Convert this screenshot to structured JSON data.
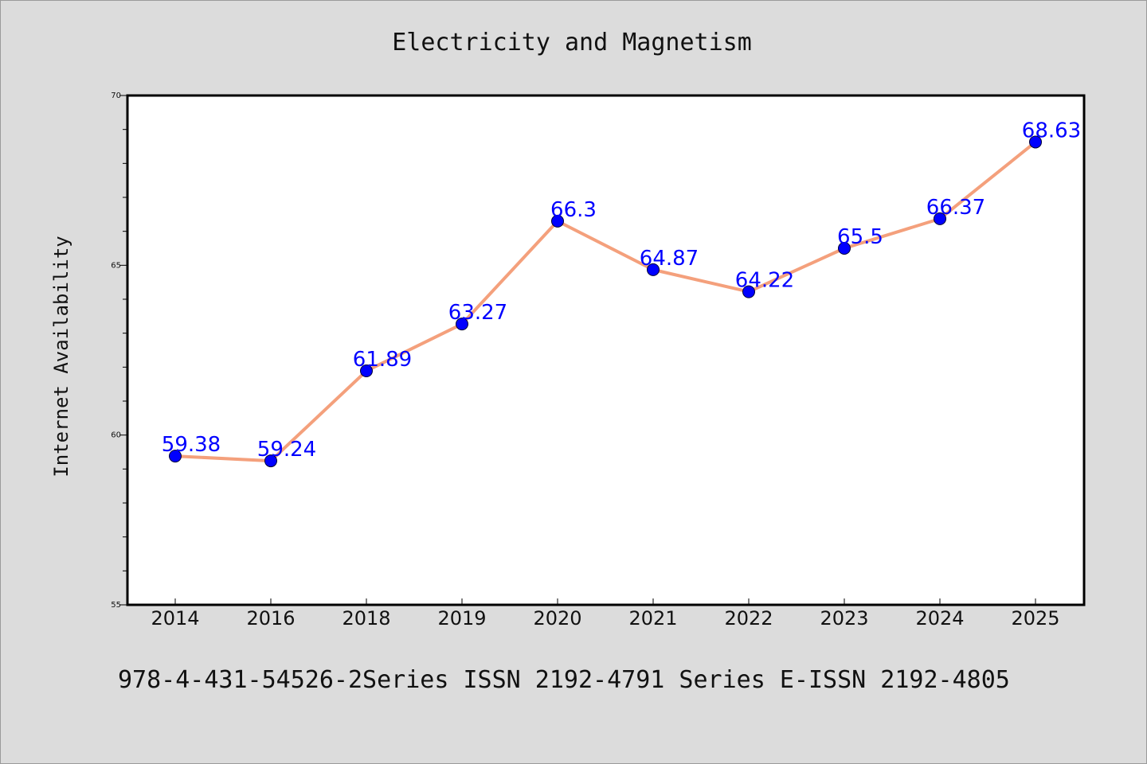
{
  "chart_data": {
    "type": "line",
    "title": "Electricity and Magnetism",
    "xlabel": "",
    "ylabel": "Internet Availability",
    "categories": [
      "2014",
      "2016",
      "2018",
      "2019",
      "2020",
      "2021",
      "2022",
      "2023",
      "2024",
      "2025"
    ],
    "series": [
      {
        "values": [
          59.38,
          59.24,
          61.89,
          63.27,
          66.3,
          64.87,
          64.22,
          65.5,
          66.37,
          68.63
        ],
        "line_color": "#f4a07c",
        "marker_color": "#0000ff"
      }
    ],
    "data_labels": [
      "59.38",
      "59.24",
      "61.89",
      "63.27",
      "66.3",
      "64.87",
      "64.22",
      "65.5",
      "66.37",
      "68.63"
    ],
    "ylim": [
      55,
      70
    ],
    "yticks": [
      "55",
      "60",
      "65",
      "70"
    ],
    "grid": false,
    "legend": "none"
  },
  "footer": {
    "text": "978-4-431-54526-2Series ISSN 2192-4791 Series E-ISSN 2192-4805"
  }
}
